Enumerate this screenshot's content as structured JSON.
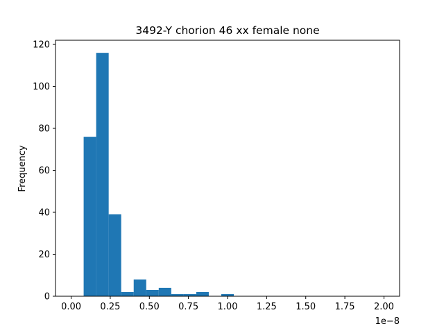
{
  "chart_data": {
    "type": "bar",
    "title": "3492-Y chorion 46 xx female none",
    "xlabel": "",
    "ylabel": "Frequency",
    "x_offset_label": "1e−8",
    "bar_color": "#1f77b4",
    "xlim": [
      -0.1,
      2.1
    ],
    "ylim": [
      0,
      122
    ],
    "xticks": [
      {
        "value": 0.0,
        "label": "0.00"
      },
      {
        "value": 0.25,
        "label": "0.25"
      },
      {
        "value": 0.5,
        "label": "0.50"
      },
      {
        "value": 0.75,
        "label": "0.75"
      },
      {
        "value": 1.0,
        "label": "1.00"
      },
      {
        "value": 1.25,
        "label": "1.25"
      },
      {
        "value": 1.5,
        "label": "1.50"
      },
      {
        "value": 1.75,
        "label": "1.75"
      },
      {
        "value": 2.0,
        "label": "2.00"
      }
    ],
    "yticks": [
      {
        "value": 0,
        "label": "0"
      },
      {
        "value": 20,
        "label": "20"
      },
      {
        "value": 40,
        "label": "40"
      },
      {
        "value": 60,
        "label": "60"
      },
      {
        "value": 80,
        "label": "80"
      },
      {
        "value": 100,
        "label": "100"
      },
      {
        "value": 120,
        "label": "120"
      }
    ],
    "bins": [
      {
        "x0": 0.0,
        "x1": 0.08,
        "count": 0
      },
      {
        "x0": 0.08,
        "x1": 0.16,
        "count": 76
      },
      {
        "x0": 0.16,
        "x1": 0.24,
        "count": 116
      },
      {
        "x0": 0.24,
        "x1": 0.32,
        "count": 39
      },
      {
        "x0": 0.32,
        "x1": 0.4,
        "count": 2
      },
      {
        "x0": 0.4,
        "x1": 0.48,
        "count": 8
      },
      {
        "x0": 0.48,
        "x1": 0.56,
        "count": 3
      },
      {
        "x0": 0.56,
        "x1": 0.64,
        "count": 4
      },
      {
        "x0": 0.64,
        "x1": 0.72,
        "count": 1
      },
      {
        "x0": 0.72,
        "x1": 0.8,
        "count": 1
      },
      {
        "x0": 0.8,
        "x1": 0.88,
        "count": 2
      },
      {
        "x0": 0.88,
        "x1": 0.96,
        "count": 0
      },
      {
        "x0": 0.96,
        "x1": 1.04,
        "count": 1
      },
      {
        "x0": 1.04,
        "x1": 1.12,
        "count": 0
      },
      {
        "x0": 1.12,
        "x1": 1.2,
        "count": 0
      },
      {
        "x0": 1.2,
        "x1": 1.28,
        "count": 0
      },
      {
        "x0": 1.28,
        "x1": 1.36,
        "count": 0
      },
      {
        "x0": 1.36,
        "x1": 1.44,
        "count": 0
      },
      {
        "x0": 1.44,
        "x1": 1.52,
        "count": 0
      },
      {
        "x0": 1.52,
        "x1": 1.6,
        "count": 0
      },
      {
        "x0": 1.6,
        "x1": 1.68,
        "count": 0
      },
      {
        "x0": 1.68,
        "x1": 1.76,
        "count": 0
      },
      {
        "x0": 1.76,
        "x1": 1.84,
        "count": 0
      },
      {
        "x0": 1.84,
        "x1": 1.92,
        "count": 0
      },
      {
        "x0": 1.92,
        "x1": 2.0,
        "count": 0
      }
    ],
    "grid": false,
    "legend": "none"
  }
}
